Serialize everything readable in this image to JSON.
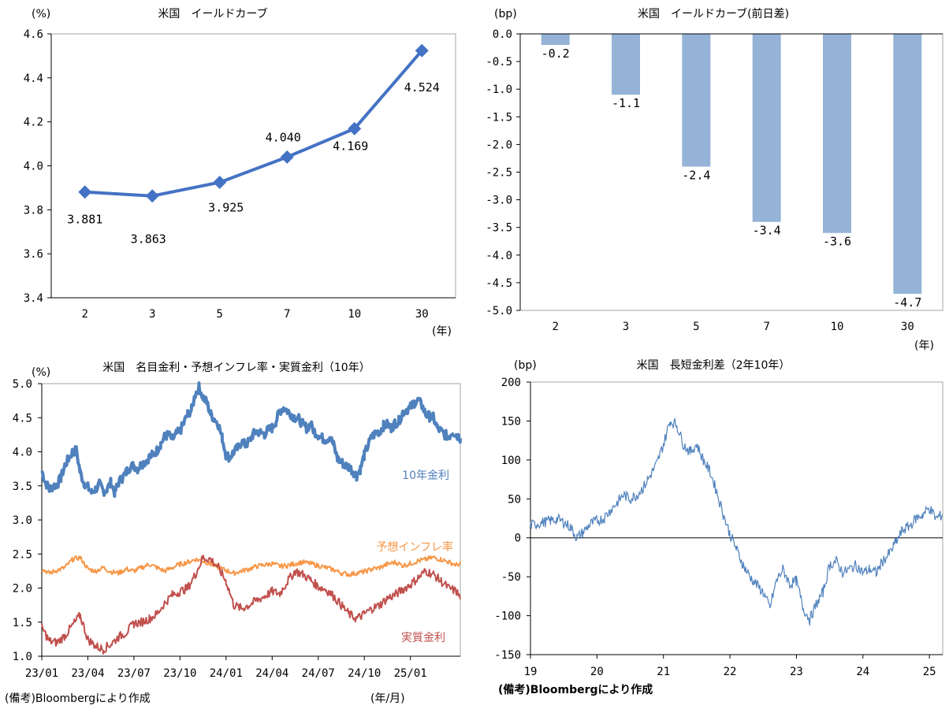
{
  "chart_data": [
    {
      "type": "line",
      "title": "米国　イールドカーブ",
      "ylabel": "(%)",
      "xlabel": "(年)",
      "categories": [
        "2",
        "3",
        "5",
        "7",
        "10",
        "30"
      ],
      "values": [
        3.881,
        3.863,
        3.925,
        4.04,
        4.169,
        4.524
      ],
      "value_labels": [
        "3.881",
        "3.863",
        "3.925",
        "4.040",
        "4.169",
        "4.524"
      ],
      "ylim": [
        3.4,
        4.6
      ],
      "yticks": [
        "3.4",
        "3.6",
        "3.8",
        "4.0",
        "4.2",
        "4.4",
        "4.6"
      ],
      "color": "#4472c4",
      "grid": false
    },
    {
      "type": "bar",
      "title": "米国　イールドカーブ(前日差)",
      "ylabel": "(bp)",
      "xlabel": "(年)",
      "categories": [
        "2",
        "3",
        "5",
        "7",
        "10",
        "30"
      ],
      "values": [
        -0.2,
        -1.1,
        -2.4,
        -3.4,
        -3.6,
        -4.7
      ],
      "value_labels": [
        "-0.2",
        "-1.1",
        "-2.4",
        "-3.4",
        "-3.6",
        "-4.7"
      ],
      "ylim": [
        -5.0,
        0.0
      ],
      "yticks": [
        "0.0",
        "-0.5",
        "-1.0",
        "-1.5",
        "-2.0",
        "-2.5",
        "-3.0",
        "-3.5",
        "-4.0",
        "-4.5",
        "-5.0"
      ],
      "color": "#95b3d7",
      "grid": false
    },
    {
      "type": "line",
      "title": "米国　名目金利・予想インフレ率・実質金利（10年）",
      "ylabel": "(%)",
      "xlabel": "(年/月)",
      "xticks": [
        "23/01",
        "23/04",
        "23/07",
        "23/10",
        "24/01",
        "24/04",
        "24/07",
        "24/10",
        "25/01"
      ],
      "ylim": [
        1.0,
        5.0
      ],
      "yticks": [
        "1.0",
        "1.5",
        "2.0",
        "2.5",
        "3.0",
        "3.5",
        "4.0",
        "4.5",
        "5.0"
      ],
      "note": "(備考)Bloombergにより作成",
      "grid": false,
      "series": [
        {
          "name": "10年金利",
          "color": "#4f81bd",
          "x": [
            0,
            0.25,
            0.5,
            0.75,
            1,
            1.25,
            1.5,
            1.75,
            2,
            2.25,
            2.5,
            2.75,
            3,
            3.25,
            3.5,
            3.75,
            4,
            4.25,
            4.5,
            4.75,
            5,
            5.25,
            5.5,
            5.75,
            6,
            6.25,
            6.5,
            6.75,
            7,
            7.25,
            7.5,
            7.75,
            8,
            8.25,
            8.5,
            8.75,
            9,
            9.25,
            9.5,
            9.75,
            10,
            10.25,
            10.5,
            10.75,
            11,
            11.25,
            11.5,
            11.75,
            12,
            12.25,
            12.5,
            12.75,
            13,
            13.25,
            13.5,
            13.75,
            14,
            14.25,
            14.5,
            14.75,
            15,
            15.25,
            15.5,
            15.75,
            16,
            16.25,
            16.5,
            16.75,
            17,
            17.25,
            17.5,
            17.75,
            18,
            18.25,
            18.5,
            18.75,
            19,
            19.25,
            19.5,
            19.75,
            20,
            20.25,
            20.5,
            20.75,
            21,
            21.25,
            21.5,
            21.75,
            22,
            22.25,
            22.5,
            22.75,
            23,
            23.25,
            23.5,
            23.75,
            24,
            24.25,
            24.5,
            24.75,
            25,
            25.25,
            25.5,
            25.75,
            26,
            26.25,
            26.5,
            26.75,
            27,
            27.25
          ],
          "values": [
            3.72,
            3.55,
            3.45,
            3.5,
            3.52,
            3.62,
            3.8,
            3.9,
            4.0,
            4.02,
            3.7,
            3.55,
            3.48,
            3.4,
            3.45,
            3.52,
            3.42,
            3.45,
            3.55,
            3.4,
            3.55,
            3.62,
            3.7,
            3.78,
            3.8,
            3.75,
            3.82,
            3.86,
            3.92,
            3.96,
            4.02,
            4.12,
            4.22,
            4.25,
            4.18,
            4.26,
            4.3,
            4.42,
            4.55,
            4.62,
            4.85,
            4.95,
            4.8,
            4.72,
            4.55,
            4.48,
            4.4,
            4.2,
            3.95,
            3.92,
            4.0,
            4.05,
            4.15,
            4.1,
            4.15,
            4.25,
            4.3,
            4.28,
            4.26,
            4.32,
            4.35,
            4.45,
            4.6,
            4.65,
            4.6,
            4.55,
            4.5,
            4.48,
            4.4,
            4.35,
            4.4,
            4.3,
            4.25,
            4.2,
            4.18,
            4.22,
            4.1,
            3.9,
            3.85,
            3.8,
            3.78,
            3.72,
            3.65,
            3.75,
            3.95,
            4.1,
            4.22,
            4.28,
            4.3,
            4.38,
            4.4,
            4.35,
            4.42,
            4.45,
            4.58,
            4.62,
            4.65,
            4.72,
            4.75,
            4.68,
            4.55,
            4.52,
            4.5,
            4.35,
            4.3,
            4.25,
            4.22,
            4.3,
            4.25,
            4.2
          ]
        },
        {
          "name": "予想インフレ率",
          "color": "#f79646",
          "x": [
            0,
            0.5,
            1,
            1.5,
            2,
            2.5,
            3,
            3.5,
            4,
            4.5,
            5,
            5.5,
            6,
            6.5,
            7,
            7.5,
            8,
            8.5,
            9,
            9.5,
            10,
            10.5,
            11,
            11.5,
            12,
            12.5,
            13,
            13.5,
            14,
            14.5,
            15,
            15.5,
            16,
            16.5,
            17,
            17.5,
            18,
            18.5,
            19,
            19.5,
            20,
            20.5,
            21,
            21.5,
            22,
            22.5,
            23,
            23.5,
            24,
            24.5,
            25,
            25.5,
            26,
            26.5,
            27,
            27.25
          ],
          "values": [
            2.28,
            2.22,
            2.26,
            2.3,
            2.42,
            2.45,
            2.28,
            2.25,
            2.3,
            2.24,
            2.22,
            2.28,
            2.25,
            2.3,
            2.35,
            2.3,
            2.25,
            2.3,
            2.35,
            2.38,
            2.42,
            2.4,
            2.35,
            2.3,
            2.26,
            2.22,
            2.25,
            2.28,
            2.32,
            2.34,
            2.36,
            2.32,
            2.33,
            2.36,
            2.38,
            2.36,
            2.33,
            2.3,
            2.27,
            2.22,
            2.2,
            2.22,
            2.24,
            2.28,
            2.3,
            2.35,
            2.38,
            2.33,
            2.36,
            2.4,
            2.42,
            2.45,
            2.42,
            2.38,
            2.34,
            2.36
          ]
        },
        {
          "name": "実質金利",
          "color": "#c0504d",
          "x": [
            0,
            0.5,
            1,
            1.5,
            2,
            2.5,
            3,
            3.5,
            4,
            4.5,
            5,
            5.5,
            6,
            6.5,
            7,
            7.5,
            8,
            8.5,
            9,
            9.5,
            10,
            10.5,
            11,
            11.5,
            12,
            12.5,
            13,
            13.5,
            14,
            14.5,
            15,
            15.5,
            16,
            16.5,
            17,
            17.5,
            18,
            18.5,
            19,
            19.5,
            20,
            20.5,
            21,
            21.5,
            22,
            22.5,
            23,
            23.5,
            24,
            24.5,
            25,
            25.5,
            26,
            26.5,
            27,
            27.25
          ],
          "values": [
            1.42,
            1.22,
            1.2,
            1.3,
            1.45,
            1.6,
            1.25,
            1.15,
            1.1,
            1.18,
            1.28,
            1.35,
            1.48,
            1.5,
            1.55,
            1.62,
            1.78,
            1.9,
            1.95,
            2.0,
            2.2,
            2.45,
            2.42,
            2.3,
            2.1,
            1.75,
            1.7,
            1.75,
            1.82,
            1.88,
            1.95,
            1.92,
            2.1,
            2.25,
            2.2,
            2.12,
            2.02,
            1.98,
            1.88,
            1.75,
            1.62,
            1.55,
            1.62,
            1.7,
            1.75,
            1.85,
            1.9,
            1.98,
            2.05,
            2.15,
            2.25,
            2.2,
            2.1,
            2.0,
            1.95,
            1.85
          ]
        }
      ]
    },
    {
      "type": "line",
      "title": "米国　長短金利差（2年10年）",
      "ylabel": "(bp)",
      "xticks": [
        "19",
        "20",
        "21",
        "22",
        "23",
        "24",
        "25"
      ],
      "ylim": [
        -150,
        200
      ],
      "yticks": [
        "200",
        "150",
        "100",
        "50",
        "0",
        "-50",
        "-100",
        "-150"
      ],
      "note": "(備考)Bloombergにより作成",
      "grid": false,
      "series": [
        {
          "color": "#4f81bd",
          "x": [
            0,
            0.1,
            0.2,
            0.3,
            0.4,
            0.5,
            0.6,
            0.7,
            0.8,
            0.9,
            1,
            1.1,
            1.2,
            1.3,
            1.4,
            1.5,
            1.6,
            1.7,
            1.8,
            1.9,
            2,
            2.1,
            2.2,
            2.3,
            2.4,
            2.5,
            2.6,
            2.7,
            2.8,
            2.9,
            3,
            3.1,
            3.2,
            3.3,
            3.4,
            3.5,
            3.6,
            3.7,
            3.8,
            3.9,
            4,
            4.1,
            4.2,
            4.3,
            4.4,
            4.5,
            4.6,
            4.7,
            4.8,
            4.9,
            5,
            5.1,
            5.2,
            5.3,
            5.4,
            5.5,
            5.6,
            5.7,
            5.8,
            5.9,
            6,
            6.1,
            6.2
          ],
          "values": [
            16,
            18,
            20,
            22,
            24,
            20,
            14,
            0,
            8,
            18,
            22,
            25,
            35,
            45,
            55,
            50,
            55,
            65,
            80,
            95,
            120,
            150,
            145,
            120,
            110,
            120,
            100,
            85,
            60,
            30,
            5,
            -15,
            -35,
            -50,
            -60,
            -70,
            -90,
            -55,
            -40,
            -60,
            -55,
            -90,
            -105,
            -85,
            -70,
            -35,
            -30,
            -45,
            -40,
            -35,
            -45,
            -40,
            -45,
            -30,
            -20,
            -5,
            10,
            15,
            25,
            30,
            38,
            25,
            30
          ]
        }
      ]
    }
  ]
}
